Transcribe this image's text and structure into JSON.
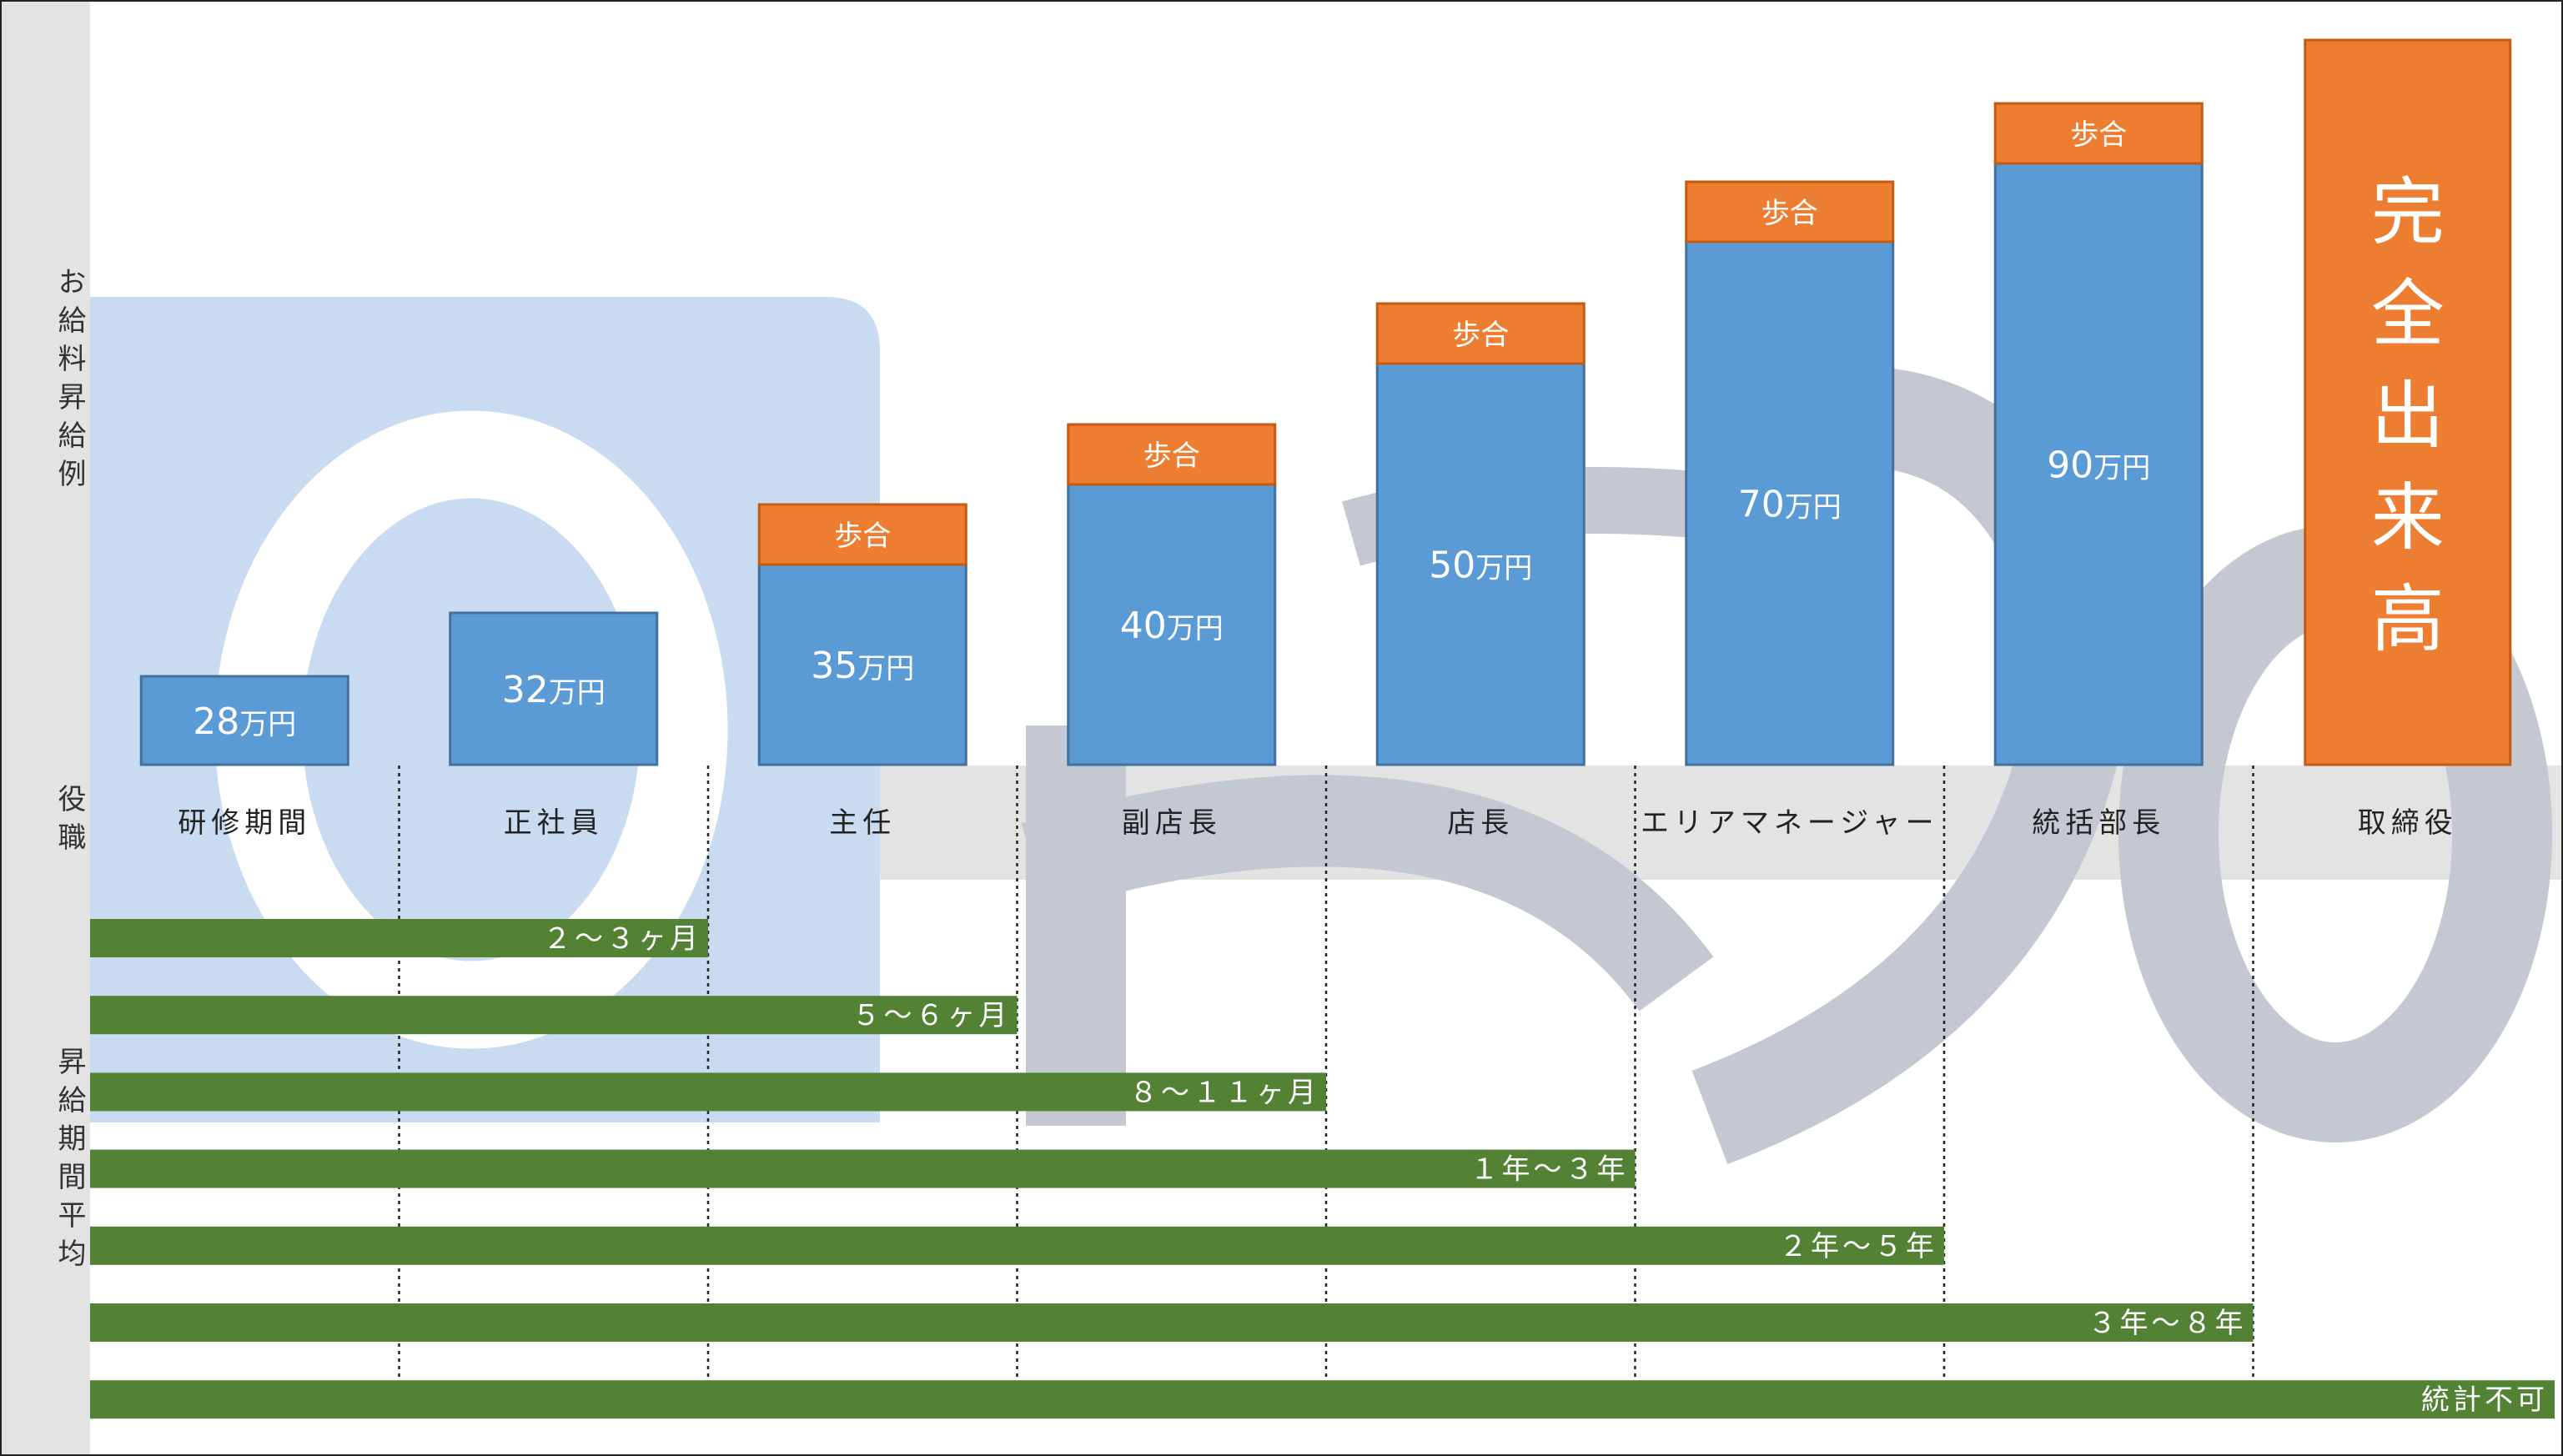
{
  "section_labels": {
    "salary": "お給料昇給例",
    "role": "役職",
    "period": "昇給期間平均"
  },
  "chart_data": {
    "type": "bar",
    "categories": [
      "研修期間",
      "正社員",
      "主任",
      "副店長",
      "店長",
      "エリアマネージャー",
      "統括部長",
      "取締役"
    ],
    "unit": "万円",
    "series": [
      {
        "values": [
          28,
          32,
          35,
          40,
          50,
          70,
          90,
          null
        ],
        "labels": [
          "28",
          "32",
          "35",
          "40",
          "50",
          "70",
          "90",
          ""
        ]
      },
      {
        "values": [
          null,
          null,
          1,
          1,
          1,
          1,
          1,
          null
        ],
        "labels": [
          "",
          "",
          "歩合",
          "歩合",
          "歩合",
          "歩合",
          "歩合",
          ""
        ]
      }
    ],
    "top_label": "完全出来高",
    "colors": {
      "base": "#5b9bd5",
      "base_edge": "#41719c",
      "commission": "#ed7d31",
      "commission_edge": "#c55a11",
      "period": "#548235"
    },
    "periods": [
      {
        "label": "２～３ヶ月",
        "end_index": 1
      },
      {
        "label": "５～６ヶ月",
        "end_index": 2
      },
      {
        "label": "８～１１ヶ月",
        "end_index": 3
      },
      {
        "label": "１年～３年",
        "end_index": 4
      },
      {
        "label": "２年～５年",
        "end_index": 5
      },
      {
        "label": "３年～８年",
        "end_index": 6
      },
      {
        "label": "統計不可",
        "end_index": 7
      }
    ]
  }
}
